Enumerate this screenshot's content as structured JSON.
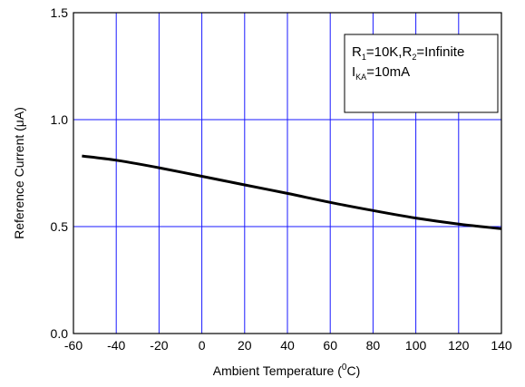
{
  "chart_data": {
    "type": "line",
    "xlabel": "Ambient Temperature (",
    "xlabel_sup": "0",
    "xlabel_unit": "C)",
    "ylabel": "Reference Current (",
    "ylabel_greek": "μ",
    "ylabel_unit": "A)",
    "xlim": [
      -60,
      140
    ],
    "ylim": [
      0.0,
      1.5
    ],
    "xticks": [
      "-60",
      "-40",
      "-20",
      "0",
      "20",
      "40",
      "60",
      "80",
      "100",
      "120",
      "140"
    ],
    "yticks": [
      "0.0",
      "0.5",
      "1.0",
      "1.5"
    ],
    "grid": true,
    "grid_color": "#1a1aff",
    "line_color": "#000000",
    "legend": {
      "placement": "top-right",
      "line1": {
        "r1": "R",
        "r1_sub": "1",
        "r1_val": "=10K,R",
        "r2_sub": "2",
        "r2_val": "=Infinite"
      },
      "line2": {
        "i": "I",
        "i_sub": "KA",
        "i_val": "=10mA"
      }
    },
    "series": [
      {
        "x": [
          -56,
          -40,
          -20,
          0,
          20,
          40,
          60,
          80,
          100,
          120,
          140
        ],
        "y": [
          0.83,
          0.81,
          0.775,
          0.735,
          0.695,
          0.655,
          0.613,
          0.575,
          0.54,
          0.512,
          0.49
        ]
      }
    ]
  }
}
